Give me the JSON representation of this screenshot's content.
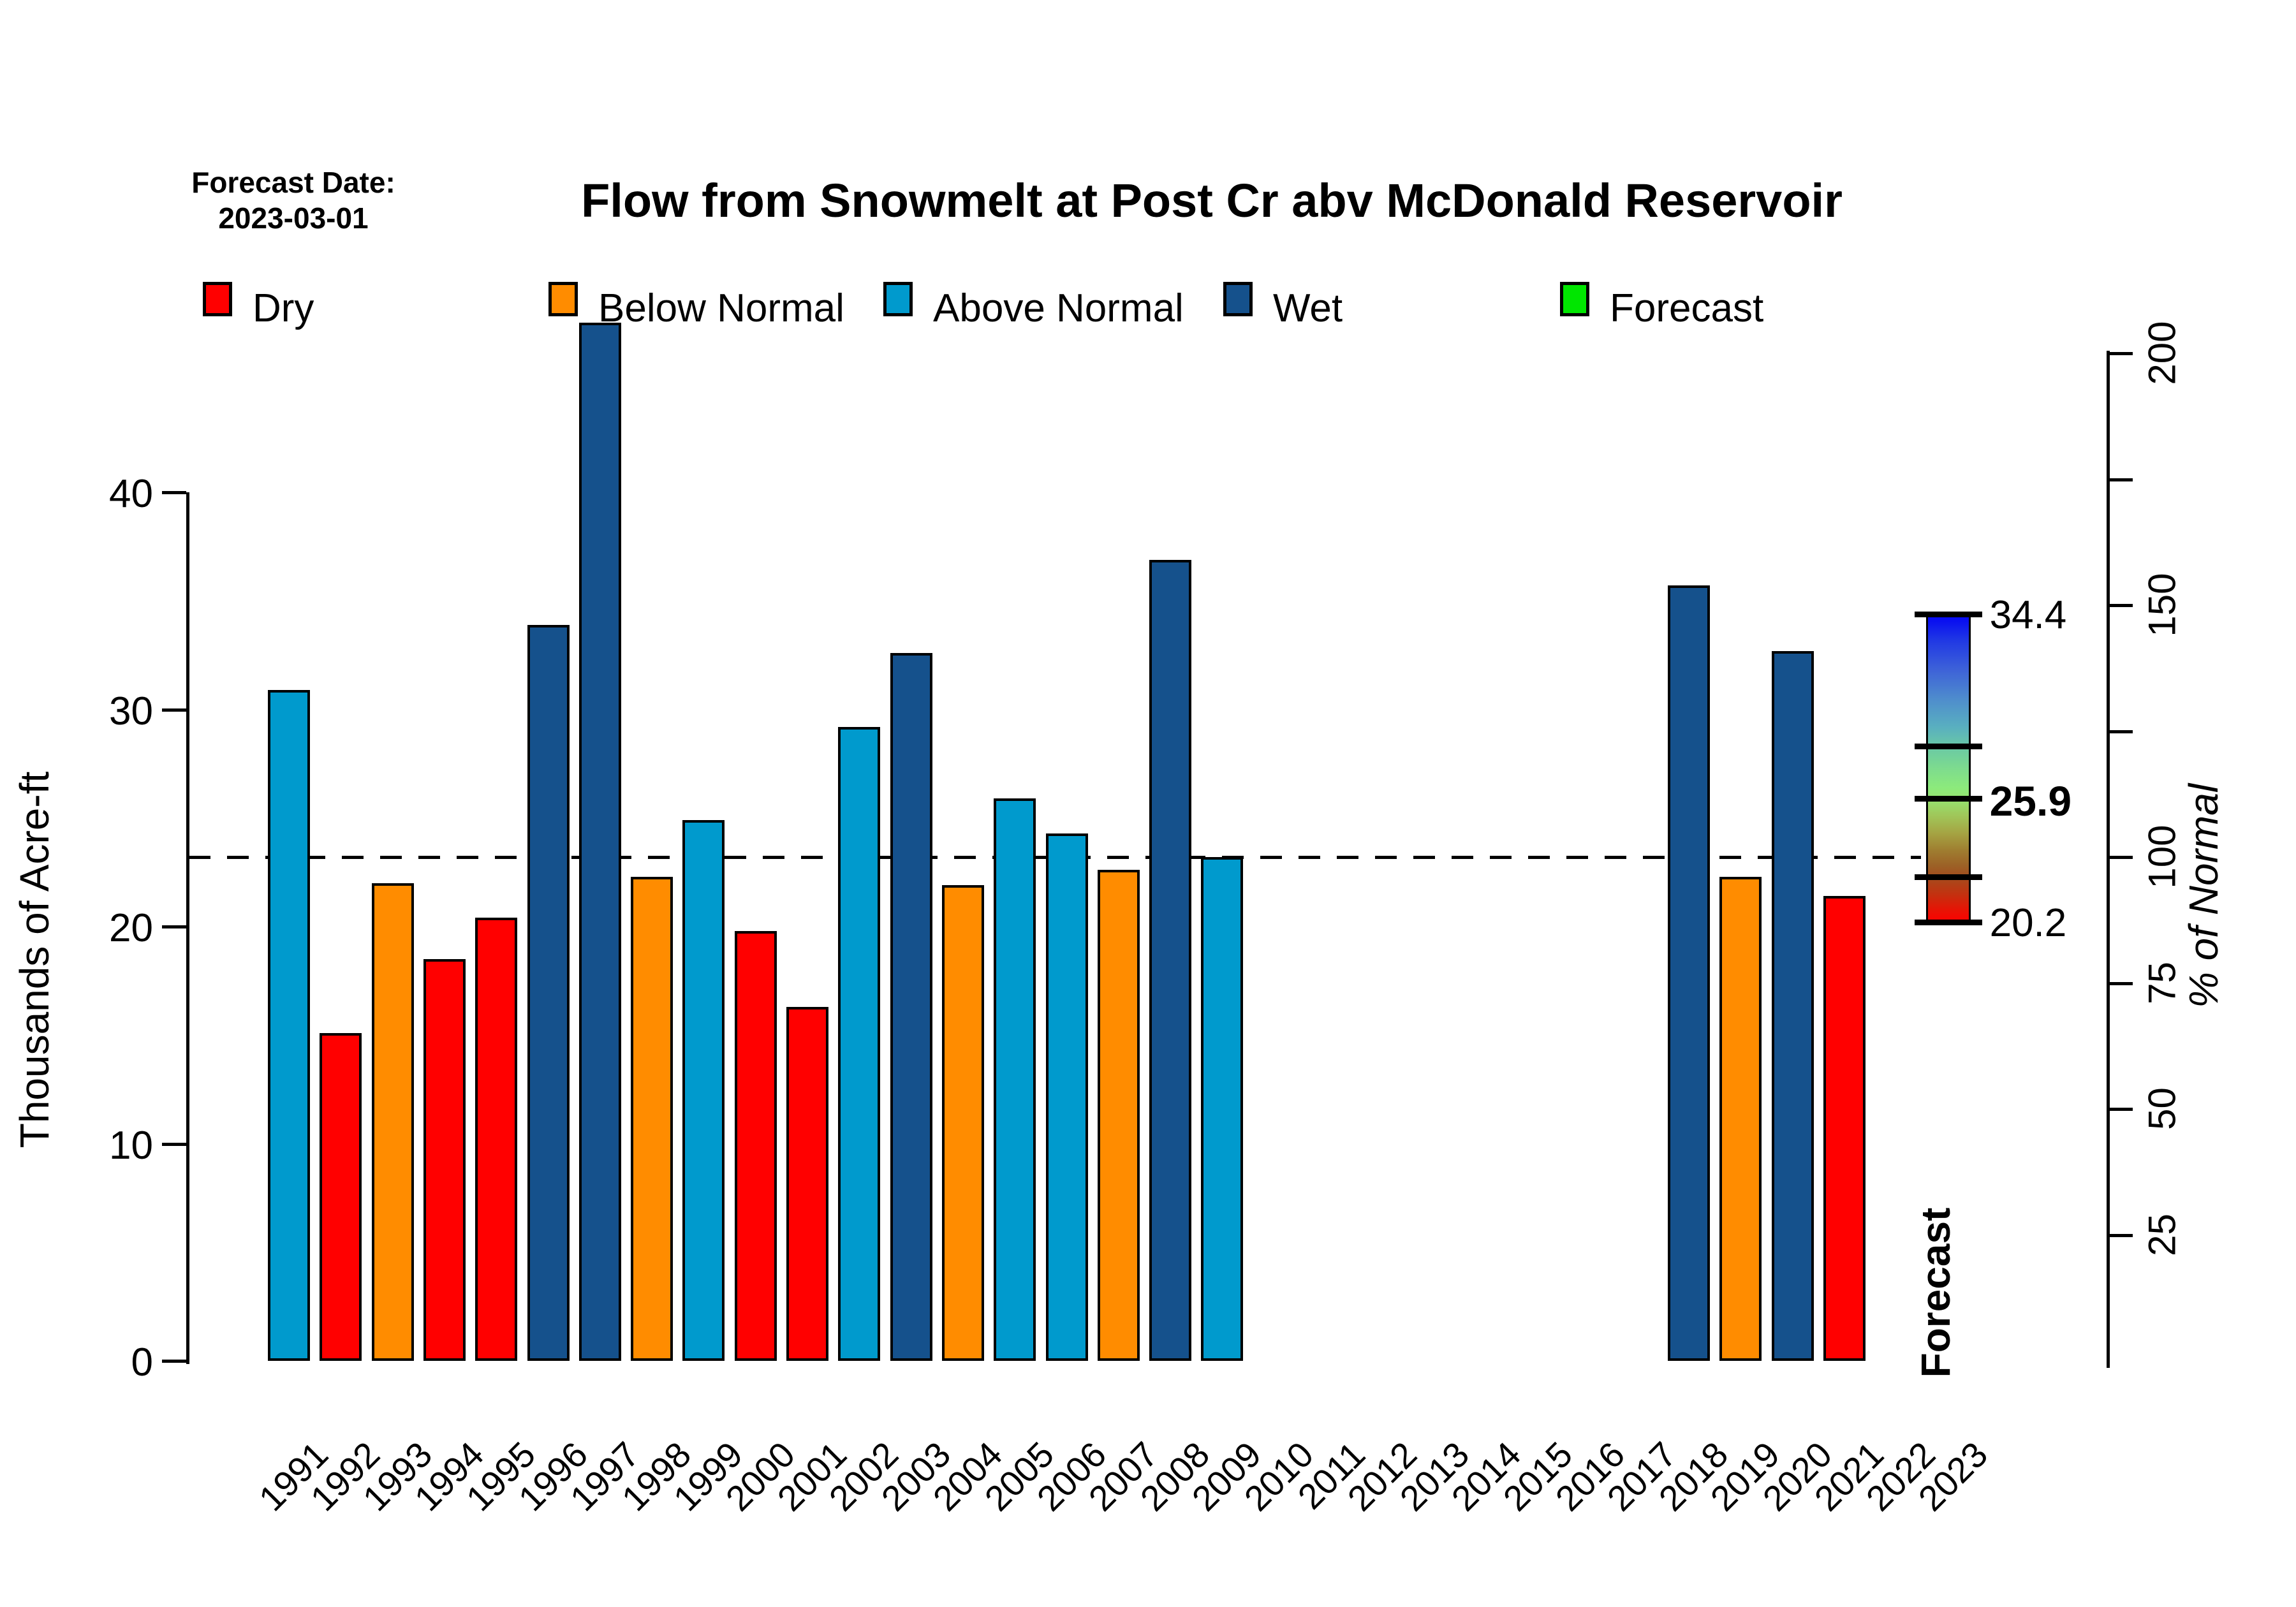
{
  "header": {
    "forecast_date_label": "Forecast Date:",
    "forecast_date": "2023-03-01",
    "title": "Flow from Snowmelt at Post Cr abv McDonald Reservoir"
  },
  "legend": {
    "items": [
      {
        "label": "Dry",
        "category": "dry",
        "color": "#FF0000",
        "x": 318
      },
      {
        "label": "Below Normal",
        "category": "below",
        "color": "#FF8C00",
        "x": 860
      },
      {
        "label": "Above Normal",
        "category": "above",
        "color": "#009ACD",
        "x": 1385
      },
      {
        "label": "Wet",
        "category": "wet",
        "color": "#15518C",
        "x": 1918
      },
      {
        "label": "Forecast",
        "category": "forecast",
        "color": "#00E600",
        "x": 2446
      }
    ]
  },
  "chart_data": {
    "type": "bar",
    "title": "Flow from Snowmelt at Post Cr abv McDonald Reservoir",
    "ylabel": "Thousands of Acre-ft",
    "y_ticks": [
      0,
      10,
      20,
      30,
      40
    ],
    "ylim": [
      0,
      48
    ],
    "x_years": [
      1991,
      1992,
      1993,
      1994,
      1995,
      1996,
      1997,
      1998,
      1999,
      2000,
      2001,
      2002,
      2003,
      2004,
      2005,
      2006,
      2007,
      2008,
      2009,
      2010,
      2011,
      2012,
      2013,
      2014,
      2015,
      2016,
      2017,
      2018,
      2019,
      2020,
      2021,
      2022,
      2023
    ],
    "normal_value": 23.2,
    "normal_line_style": "dashed",
    "grid": false,
    "right_axis": {
      "label": "% of Normal",
      "ticks": [
        25,
        50,
        75,
        100,
        125,
        150,
        175,
        200
      ],
      "labeled_ticks": [
        25,
        50,
        75,
        100,
        150,
        200
      ]
    },
    "category_colors": {
      "dry": "#FF0000",
      "below": "#FF8C00",
      "above": "#009ACD",
      "wet": "#15518C",
      "forecast": "#00E600"
    },
    "bars": [
      {
        "year": 1991,
        "value": 30.9,
        "category": "above"
      },
      {
        "year": 1992,
        "value": 15.1,
        "category": "dry"
      },
      {
        "year": 1993,
        "value": 22.0,
        "category": "below"
      },
      {
        "year": 1994,
        "value": 18.5,
        "category": "dry"
      },
      {
        "year": 1995,
        "value": 20.4,
        "category": "dry"
      },
      {
        "year": 1996,
        "value": 33.9,
        "category": "wet"
      },
      {
        "year": 1997,
        "value": 47.8,
        "category": "wet"
      },
      {
        "year": 1998,
        "value": 22.3,
        "category": "below"
      },
      {
        "year": 1999,
        "value": 24.9,
        "category": "above"
      },
      {
        "year": 2000,
        "value": 19.8,
        "category": "dry"
      },
      {
        "year": 2001,
        "value": 16.3,
        "category": "dry"
      },
      {
        "year": 2002,
        "value": 29.2,
        "category": "above"
      },
      {
        "year": 2003,
        "value": 32.6,
        "category": "wet"
      },
      {
        "year": 2004,
        "value": 21.9,
        "category": "below"
      },
      {
        "year": 2005,
        "value": 25.9,
        "category": "above"
      },
      {
        "year": 2006,
        "value": 24.3,
        "category": "above"
      },
      {
        "year": 2007,
        "value": 22.6,
        "category": "below"
      },
      {
        "year": 2008,
        "value": 36.9,
        "category": "wet"
      },
      {
        "year": 2009,
        "value": 23.2,
        "category": "above"
      },
      {
        "year": 2018,
        "value": 35.7,
        "category": "wet"
      },
      {
        "year": 2019,
        "value": 22.3,
        "category": "below"
      },
      {
        "year": 2020,
        "value": 32.7,
        "category": "wet"
      },
      {
        "year": 2021,
        "value": 21.4,
        "category": "dry"
      }
    ],
    "forecast_distribution": {
      "year": 2023,
      "axis_label": "Forecast",
      "max": 34.4,
      "upper": 28.3,
      "median": 25.9,
      "lower": 22.3,
      "min": 20.2,
      "lines": [
        34.4,
        28.3,
        25.9,
        22.3,
        20.2
      ],
      "labels": [
        {
          "value": 34.4,
          "text": "34.4",
          "bold": false
        },
        {
          "value": 25.9,
          "text": "25.9",
          "bold": true
        },
        {
          "value": 20.2,
          "text": "20.2",
          "bold": false
        }
      ],
      "gradient_stops": [
        {
          "value": 34.4,
          "color": "#0202F5"
        },
        {
          "value": 33.2,
          "color": "#2038E4"
        },
        {
          "value": 31.8,
          "color": "#3E63D8"
        },
        {
          "value": 30.4,
          "color": "#4F8FCC"
        },
        {
          "value": 29.2,
          "color": "#59AFC0"
        },
        {
          "value": 28.3,
          "color": "#69C8A6"
        },
        {
          "value": 27.2,
          "color": "#7FDD8C"
        },
        {
          "value": 26.4,
          "color": "#8CEA7C"
        },
        {
          "value": 25.9,
          "color": "#95E471"
        },
        {
          "value": 25.1,
          "color": "#A0C659"
        },
        {
          "value": 24.3,
          "color": "#A5A443"
        },
        {
          "value": 23.5,
          "color": "#9F7D30"
        },
        {
          "value": 22.8,
          "color": "#9C6126"
        },
        {
          "value": 22.3,
          "color": "#A34D1E"
        },
        {
          "value": 21.5,
          "color": "#C23210"
        },
        {
          "value": 20.8,
          "color": "#E51505"
        },
        {
          "value": 20.2,
          "color": "#FC0000"
        }
      ]
    }
  }
}
